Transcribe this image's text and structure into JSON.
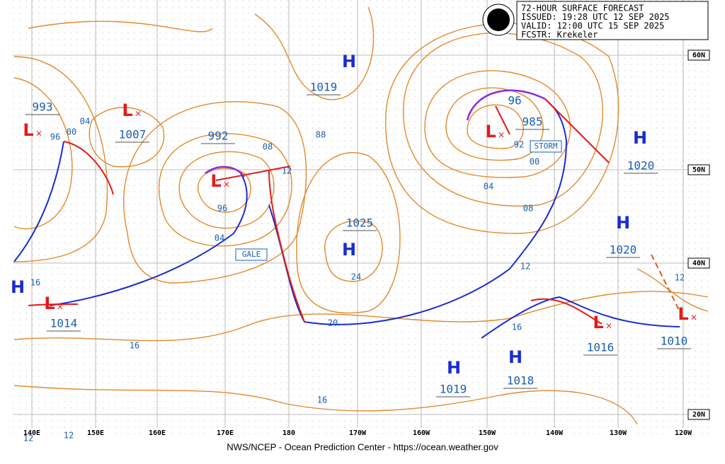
{
  "header": {
    "lines": [
      "72-HOUR SURFACE FORECAST",
      "ISSUED: 19:28 UTC 12 SEP 2025",
      "VALID:  12:00 UTC 15 SEP 2025",
      "FCSTR:  Krekeler"
    ]
  },
  "footer": "NWS/NCEP - Ocean Prediction Center - https://ocean.weather.gov",
  "longitudes": [
    "140E",
    "150E",
    "160E",
    "170E",
    "180",
    "170W",
    "160W",
    "150W",
    "140W",
    "130W",
    "120W"
  ],
  "latitudes": [
    "60N",
    "50N",
    "40N",
    "20N"
  ],
  "systems": [
    {
      "symbol": "H",
      "pressure": 1019
    },
    {
      "symbol": "L",
      "pressure": 1007
    },
    {
      "symbol": "L",
      "pressure": 993
    },
    {
      "symbol": "L",
      "pressure": 992
    },
    {
      "symbol": "H",
      "pressure": 1025
    },
    {
      "symbol": "L",
      "pressure": 985
    },
    {
      "symbol": "H",
      "pressure": 1020
    },
    {
      "symbol": "H",
      "pressure": 1020
    },
    {
      "symbol": "H"
    },
    {
      "symbol": "L",
      "pressure": 1014
    },
    {
      "symbol": "L",
      "pressure": 1016
    },
    {
      "symbol": "L",
      "pressure": 1010
    },
    {
      "symbol": "H",
      "pressure": 1019
    },
    {
      "symbol": "H",
      "pressure": 1018
    }
  ],
  "contour_labels": [
    "04",
    "00",
    "96",
    "08",
    "12",
    "96",
    "04",
    "88",
    "24",
    "20",
    "16",
    "16",
    "16",
    "12",
    "12",
    "92",
    "00",
    "04",
    "08",
    "12",
    "16",
    "12",
    "96"
  ],
  "warnings": [
    "GALE",
    "STORM"
  ]
}
